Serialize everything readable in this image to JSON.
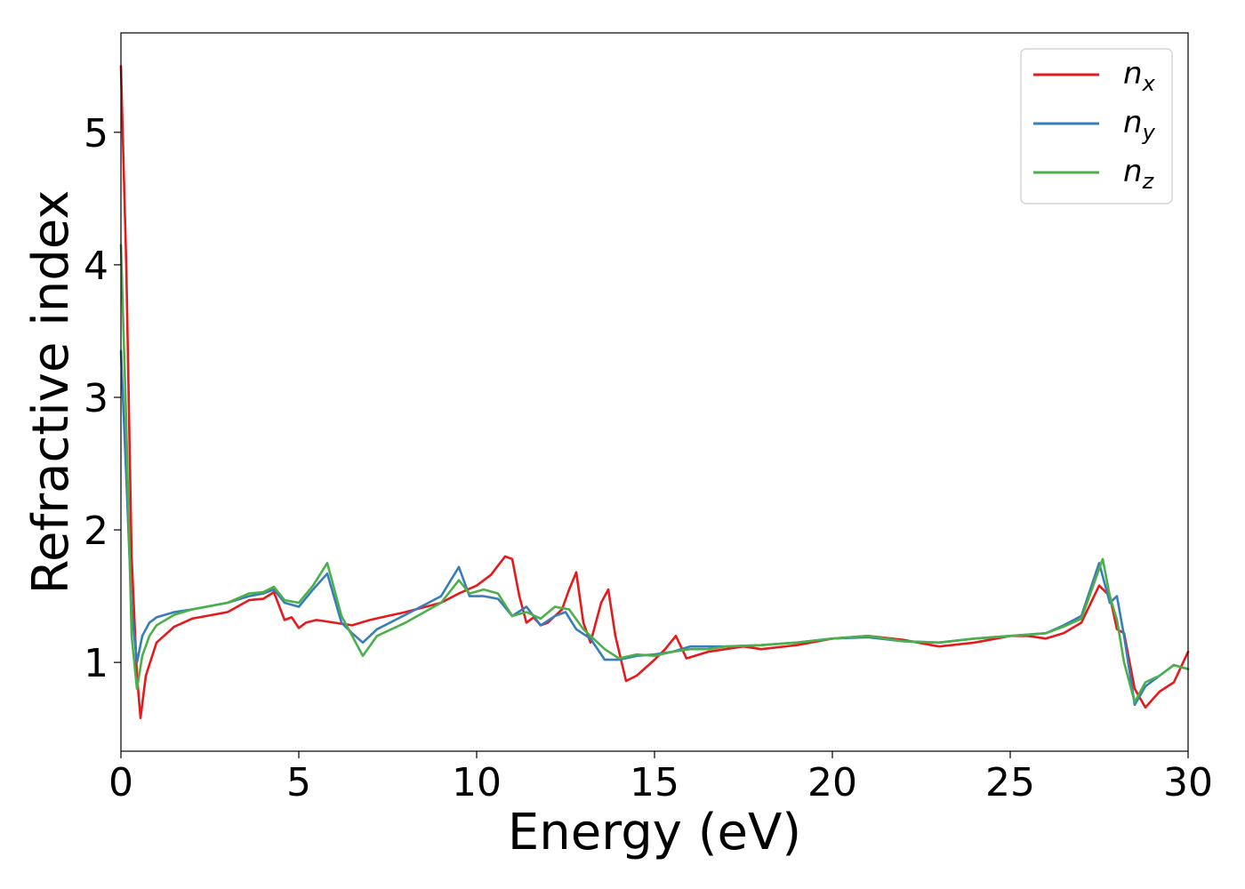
{
  "chart_data": {
    "type": "line",
    "xlabel": "Energy (eV)",
    "ylabel": "Refractive index",
    "xlim": [
      0,
      30
    ],
    "ylim": [
      0.33,
      5.75
    ],
    "grid": false,
    "legend_position": "top-right",
    "x_ticks": [
      0,
      5,
      10,
      15,
      20,
      25,
      30
    ],
    "y_ticks": [
      1,
      2,
      3,
      4,
      5
    ],
    "series": [
      {
        "name": "n",
        "subscript": "x",
        "color": "#e41a1c",
        "x": [
          0,
          0.15,
          0.3,
          0.45,
          0.55,
          0.7,
          1.0,
          1.5,
          2.0,
          3.0,
          3.6,
          4.0,
          4.3,
          4.6,
          4.8,
          5.0,
          5.2,
          5.5,
          6.0,
          6.5,
          7.0,
          7.5,
          8.0,
          9.0,
          9.5,
          10.0,
          10.4,
          10.8,
          11.0,
          11.2,
          11.4,
          11.6,
          11.8,
          12.0,
          12.2,
          12.4,
          12.6,
          12.8,
          13.0,
          13.2,
          13.5,
          13.7,
          13.9,
          14.2,
          14.5,
          15.0,
          15.3,
          15.6,
          15.9,
          16.5,
          17.0,
          17.5,
          18.0,
          19.0,
          20.0,
          21.0,
          22.0,
          23.0,
          24.0,
          25.0,
          25.5,
          26.0,
          26.5,
          27.0,
          27.5,
          27.8,
          28.0,
          28.2,
          28.5,
          28.8,
          29.2,
          29.6,
          30.0
        ],
        "y": [
          5.5,
          4.0,
          1.8,
          0.9,
          0.58,
          0.9,
          1.15,
          1.27,
          1.33,
          1.38,
          1.47,
          1.48,
          1.53,
          1.32,
          1.34,
          1.26,
          1.3,
          1.32,
          1.3,
          1.28,
          1.32,
          1.35,
          1.38,
          1.45,
          1.52,
          1.58,
          1.66,
          1.8,
          1.78,
          1.5,
          1.3,
          1.34,
          1.28,
          1.3,
          1.35,
          1.4,
          1.55,
          1.68,
          1.3,
          1.15,
          1.45,
          1.55,
          1.2,
          0.86,
          0.9,
          1.02,
          1.1,
          1.2,
          1.03,
          1.08,
          1.1,
          1.12,
          1.1,
          1.13,
          1.18,
          1.2,
          1.17,
          1.12,
          1.15,
          1.2,
          1.2,
          1.18,
          1.22,
          1.3,
          1.58,
          1.5,
          1.25,
          1.22,
          0.8,
          0.66,
          0.78,
          0.85,
          1.08
        ]
      },
      {
        "name": "n",
        "subscript": "y",
        "color": "#377eb8",
        "x": [
          0,
          0.15,
          0.3,
          0.45,
          0.6,
          0.8,
          1.0,
          1.5,
          2.0,
          3.0,
          3.6,
          4.0,
          4.3,
          4.6,
          5.0,
          5.4,
          5.8,
          6.2,
          6.5,
          6.8,
          7.2,
          8.0,
          9.0,
          9.5,
          9.8,
          10.2,
          10.6,
          11.0,
          11.4,
          11.8,
          12.2,
          12.5,
          12.8,
          13.2,
          13.6,
          14.0,
          14.5,
          15.0,
          15.5,
          16.0,
          16.5,
          17.0,
          18.0,
          19.0,
          20.0,
          21.0,
          22.0,
          23.0,
          24.0,
          25.0,
          26.0,
          26.5,
          27.0,
          27.5,
          27.8,
          28.0,
          28.2,
          28.5,
          28.8,
          29.2,
          29.6,
          30.0
        ],
        "y": [
          3.35,
          2.4,
          1.4,
          1.0,
          1.2,
          1.3,
          1.34,
          1.38,
          1.4,
          1.45,
          1.5,
          1.52,
          1.55,
          1.45,
          1.42,
          1.55,
          1.67,
          1.3,
          1.22,
          1.15,
          1.25,
          1.36,
          1.5,
          1.72,
          1.5,
          1.5,
          1.48,
          1.35,
          1.42,
          1.28,
          1.35,
          1.38,
          1.25,
          1.18,
          1.02,
          1.02,
          1.05,
          1.06,
          1.08,
          1.12,
          1.12,
          1.12,
          1.13,
          1.15,
          1.18,
          1.19,
          1.16,
          1.15,
          1.18,
          1.2,
          1.22,
          1.28,
          1.35,
          1.75,
          1.45,
          1.5,
          1.2,
          0.68,
          0.82,
          0.9,
          0.98,
          0.95
        ]
      },
      {
        "name": "n",
        "subscript": "z",
        "color": "#4daf4a",
        "x": [
          0,
          0.15,
          0.3,
          0.45,
          0.6,
          0.8,
          1.0,
          1.5,
          2.0,
          3.0,
          3.6,
          4.0,
          4.3,
          4.6,
          5.0,
          5.4,
          5.8,
          6.2,
          6.5,
          6.8,
          7.2,
          8.0,
          9.0,
          9.5,
          9.8,
          10.2,
          10.6,
          11.0,
          11.4,
          11.8,
          12.2,
          12.6,
          13.0,
          13.6,
          14.0,
          14.5,
          15.0,
          15.5,
          16.0,
          16.5,
          17.0,
          18.0,
          19.0,
          20.0,
          21.0,
          22.0,
          23.0,
          24.0,
          25.0,
          26.0,
          26.5,
          27.0,
          27.6,
          27.8,
          28.0,
          28.2,
          28.5,
          28.8,
          29.2,
          29.6,
          30.0
        ],
        "y": [
          4.15,
          2.8,
          1.2,
          0.8,
          1.05,
          1.2,
          1.28,
          1.36,
          1.4,
          1.45,
          1.52,
          1.53,
          1.57,
          1.47,
          1.45,
          1.58,
          1.75,
          1.35,
          1.2,
          1.05,
          1.2,
          1.3,
          1.45,
          1.62,
          1.52,
          1.55,
          1.52,
          1.35,
          1.38,
          1.33,
          1.42,
          1.4,
          1.25,
          1.1,
          1.03,
          1.06,
          1.05,
          1.08,
          1.1,
          1.1,
          1.12,
          1.13,
          1.15,
          1.18,
          1.2,
          1.16,
          1.15,
          1.18,
          1.2,
          1.22,
          1.27,
          1.33,
          1.78,
          1.5,
          1.32,
          1.0,
          0.7,
          0.85,
          0.9,
          0.98,
          0.95
        ]
      }
    ]
  }
}
